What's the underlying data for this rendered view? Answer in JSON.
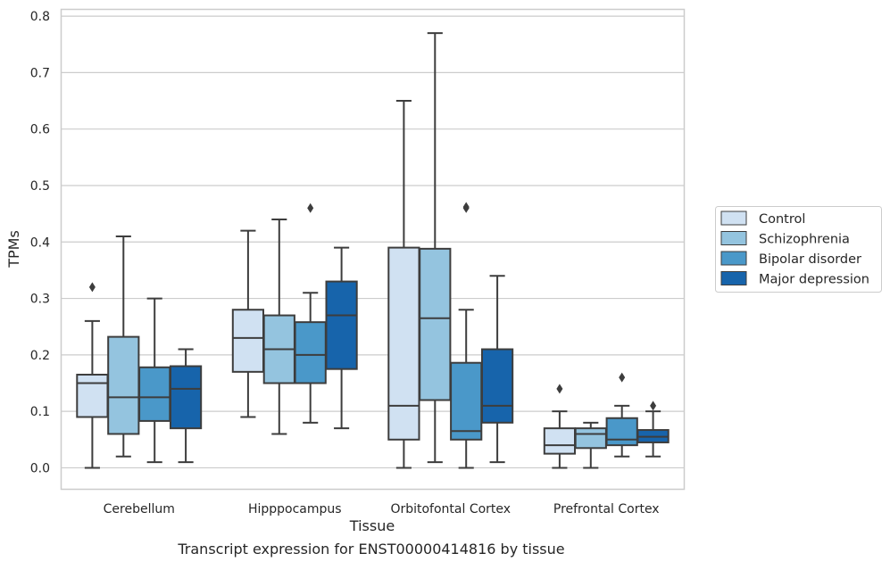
{
  "caption": "Transcript expression for ENST00000414816 by tissue",
  "chart_data": {
    "type": "box",
    "xlabel": "Tissue",
    "ylabel": "TPMs",
    "ylim": [
      -0.038,
      0.812
    ],
    "yticks": [
      0.0,
      0.1,
      0.2,
      0.3,
      0.4,
      0.5,
      0.6,
      0.7,
      0.8
    ],
    "ytick_labels": [
      "0.0",
      "0.1",
      "0.2",
      "0.3",
      "0.4",
      "0.5",
      "0.6",
      "0.7",
      "0.8"
    ],
    "grid": "horizontal",
    "legend_position": "right",
    "categories": [
      "Cerebellum",
      "Hipppocampus",
      "Orbitofontal Cortex",
      "Prefrontal Cortex"
    ],
    "series": [
      {
        "name": "Control",
        "color": "#d0e1f2",
        "boxes": [
          {
            "min": 0.0,
            "q1": 0.09,
            "median": 0.15,
            "q3": 0.165,
            "max": 0.26,
            "outliers": [
              0.32
            ]
          },
          {
            "min": 0.09,
            "q1": 0.17,
            "median": 0.23,
            "q3": 0.28,
            "max": 0.42,
            "outliers": []
          },
          {
            "min": 0.0,
            "q1": 0.05,
            "median": 0.11,
            "q3": 0.39,
            "max": 0.65,
            "outliers": []
          },
          {
            "min": 0.0,
            "q1": 0.025,
            "median": 0.04,
            "q3": 0.07,
            "max": 0.1,
            "outliers": [
              0.14
            ]
          }
        ]
      },
      {
        "name": "Schizophrenia",
        "color": "#94c4df",
        "boxes": [
          {
            "min": 0.02,
            "q1": 0.06,
            "median": 0.125,
            "q3": 0.232,
            "max": 0.41,
            "outliers": []
          },
          {
            "min": 0.06,
            "q1": 0.15,
            "median": 0.21,
            "q3": 0.27,
            "max": 0.44,
            "outliers": []
          },
          {
            "min": 0.01,
            "q1": 0.12,
            "median": 0.265,
            "q3": 0.388,
            "max": 0.77,
            "outliers": []
          },
          {
            "min": 0.0,
            "q1": 0.035,
            "median": 0.06,
            "q3": 0.07,
            "max": 0.08,
            "outliers": []
          }
        ]
      },
      {
        "name": "Bipolar disorder",
        "color": "#4a98c9",
        "boxes": [
          {
            "min": 0.01,
            "q1": 0.083,
            "median": 0.125,
            "q3": 0.178,
            "max": 0.3,
            "outliers": []
          },
          {
            "min": 0.08,
            "q1": 0.15,
            "median": 0.2,
            "q3": 0.258,
            "max": 0.31,
            "outliers": [
              0.46
            ]
          },
          {
            "min": 0.0,
            "q1": 0.05,
            "median": 0.065,
            "q3": 0.186,
            "max": 0.28,
            "outliers": [
              0.46,
              0.462
            ]
          },
          {
            "min": 0.02,
            "q1": 0.04,
            "median": 0.05,
            "q3": 0.088,
            "max": 0.11,
            "outliers": [
              0.16
            ]
          }
        ]
      },
      {
        "name": "Major depression",
        "color": "#1764ab",
        "boxes": [
          {
            "min": 0.01,
            "q1": 0.07,
            "median": 0.14,
            "q3": 0.18,
            "max": 0.21,
            "outliers": []
          },
          {
            "min": 0.07,
            "q1": 0.175,
            "median": 0.27,
            "q3": 0.33,
            "max": 0.39,
            "outliers": []
          },
          {
            "min": 0.01,
            "q1": 0.08,
            "median": 0.11,
            "q3": 0.21,
            "max": 0.34,
            "outliers": []
          },
          {
            "min": 0.02,
            "q1": 0.045,
            "median": 0.055,
            "q3": 0.067,
            "max": 0.1,
            "outliers": [
              0.11
            ]
          }
        ]
      }
    ]
  }
}
